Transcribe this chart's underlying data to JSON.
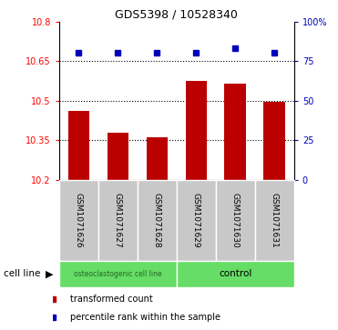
{
  "title": "GDS5398 / 10528340",
  "samples": [
    "GSM1071626",
    "GSM1071627",
    "GSM1071628",
    "GSM1071629",
    "GSM1071630",
    "GSM1071631"
  ],
  "bar_values": [
    10.46,
    10.38,
    10.36,
    10.575,
    10.565,
    10.495
  ],
  "percentile_values": [
    80,
    80,
    80,
    80,
    83,
    80
  ],
  "ylim_left": [
    10.2,
    10.8
  ],
  "ylim_right": [
    0,
    100
  ],
  "yticks_left": [
    10.2,
    10.35,
    10.5,
    10.65,
    10.8
  ],
  "ytick_labels_left": [
    "10.2",
    "10.35",
    "10.5",
    "10.65",
    "10.8"
  ],
  "yticks_right": [
    0,
    25,
    50,
    75,
    100
  ],
  "ytick_labels_right": [
    "0",
    "25",
    "50",
    "75",
    "100%"
  ],
  "hlines": [
    10.35,
    10.5,
    10.65
  ],
  "bar_color": "#bb0000",
  "dot_color": "#0000bb",
  "bar_bottom": 10.2,
  "group_bg_color": "#c8c8c8",
  "group1_label": "osteoclastogenic cell line",
  "group2_label": "control",
  "group_color": "#66dd66",
  "cell_line_label": "cell line",
  "legend_items": [
    {
      "color": "#bb0000",
      "label": "transformed count"
    },
    {
      "color": "#0000bb",
      "label": "percentile rank within the sample"
    }
  ],
  "title_fontsize": 9,
  "tick_fontsize": 7,
  "label_fontsize": 6.5,
  "legend_fontsize": 7
}
